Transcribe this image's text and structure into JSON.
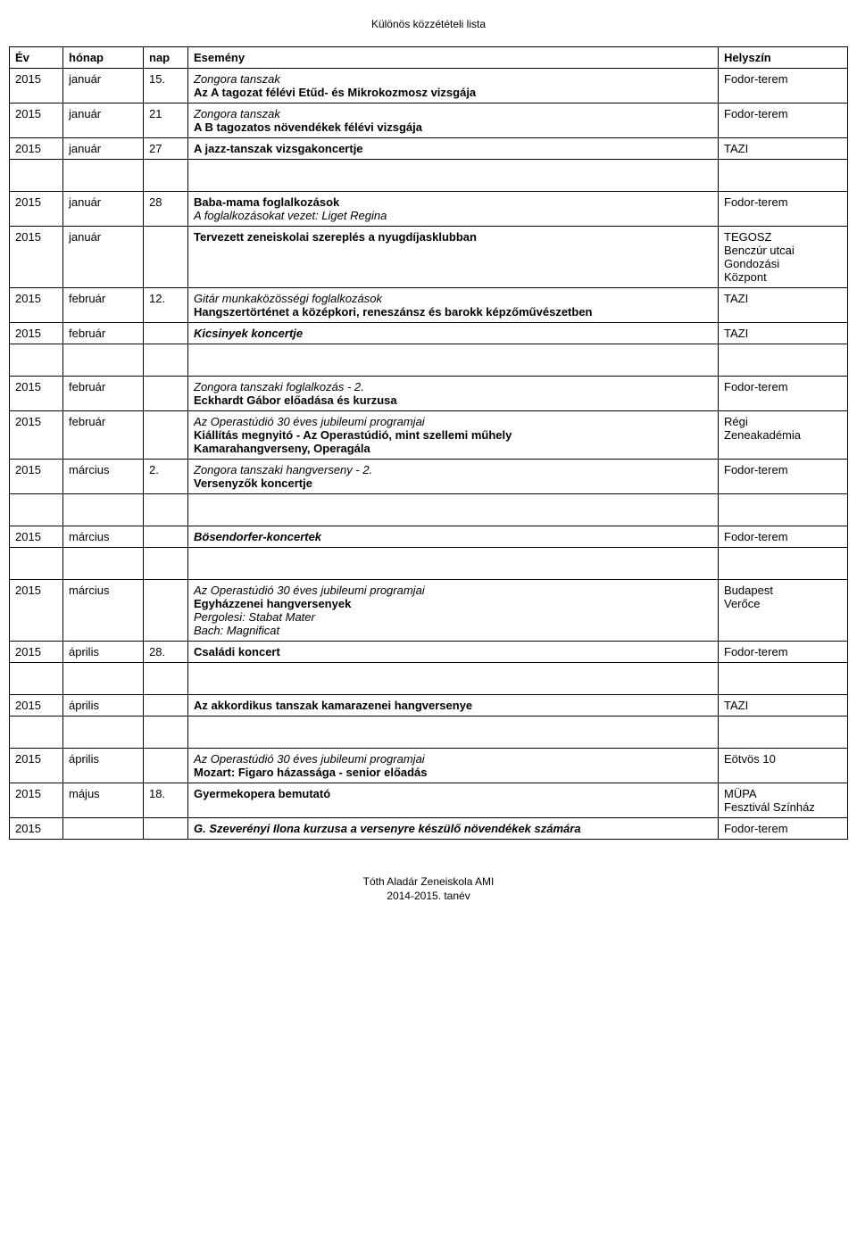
{
  "doc_header": "Különös közzétételi lista",
  "columns": {
    "year": "Év",
    "month": "hónap",
    "day": "nap",
    "event": "Esemény",
    "venue": "Helyszín"
  },
  "footer": {
    "line1": "Tóth Aladár Zeneiskola AMI",
    "line2": "2014-2015. tanév"
  },
  "rows": [
    {
      "year": "2015",
      "month": "január",
      "day": "15.",
      "event_lines": [
        {
          "text": "Zongora tanszak",
          "italic": true
        },
        {
          "text": "Az A tagozat félévi Etűd- és Mikrokozmosz vizsgája",
          "bold": true
        }
      ],
      "venue_lines": [
        "Fodor-terem"
      ]
    },
    {
      "year": "2015",
      "month": "január",
      "day": "21",
      "event_lines": [
        {
          "text": "Zongora tanszak",
          "italic": true
        },
        {
          "text": "A B tagozatos növendékek félévi vizsgája",
          "bold": true
        }
      ],
      "venue_lines": [
        "Fodor-terem"
      ]
    },
    {
      "year": "2015",
      "month": "január",
      "day": "27",
      "event_lines": [
        {
          "text": "A jazz-tanszak vizsgakoncertje",
          "bold": true
        }
      ],
      "venue_lines": [
        "TAZI"
      ]
    },
    {
      "spacer": true
    },
    {
      "year": "2015",
      "month": "január",
      "day": "28",
      "event_lines": [
        {
          "text": "Baba-mama foglalkozások",
          "bold": true
        },
        {
          "text": "A foglalkozásokat vezet: Liget Regina",
          "italic": true
        }
      ],
      "venue_lines": [
        "Fodor-terem"
      ]
    },
    {
      "year": "2015",
      "month": "január",
      "day": "",
      "event_lines": [
        {
          "text": "Tervezett zeneiskolai szereplés a nyugdíjasklubban",
          "bold": true
        }
      ],
      "venue_lines": [
        "TEGOSZ",
        "Benczúr utcai",
        "Gondozási",
        "Központ"
      ]
    },
    {
      "year": "2015",
      "month": "február",
      "day": "12.",
      "event_lines": [
        {
          "text": "Gitár munkaközösségi foglalkozások",
          "italic": true
        },
        {
          "text": "Hangszertörténet a középkori, reneszánsz és barokk képzőművészetben",
          "bold": true
        }
      ],
      "venue_lines": [
        "TAZI"
      ]
    },
    {
      "year": "2015",
      "month": "február",
      "day": "",
      "event_lines": [
        {
          "text": "Kicsinyek koncertje",
          "bolditalic": true
        }
      ],
      "venue_lines": [
        "TAZI"
      ]
    },
    {
      "spacer": true
    },
    {
      "year": "2015",
      "month": "február",
      "day": "",
      "event_lines": [
        {
          "text": "Zongora tanszaki foglalkozás - 2.",
          "italic": true
        },
        {
          "text": "Eckhardt Gábor előadása és kurzusa",
          "bold": true
        }
      ],
      "venue_lines": [
        "Fodor-terem"
      ]
    },
    {
      "year": "2015",
      "month": "február",
      "day": "",
      "event_lines": [
        {
          "text": "Az Operastúdió 30 éves jubileumi programjai",
          "italic": true
        },
        {
          "text": "Kiállítás megnyitó - Az Operastúdió, mint szellemi műhely",
          "bold": true
        },
        {
          "text": "Kamarahangverseny, Operagála",
          "bold": true
        }
      ],
      "venue_lines": [
        "Régi",
        "Zeneakadémia"
      ]
    },
    {
      "year": "2015",
      "month": "március",
      "day": "2.",
      "event_lines": [
        {
          "text": "Zongora tanszaki hangverseny - 2.",
          "italic": true
        },
        {
          "text": "Versenyzők koncertje",
          "bold": true
        }
      ],
      "venue_lines": [
        "Fodor-terem"
      ]
    },
    {
      "spacer": true
    },
    {
      "year": "2015",
      "month": "március",
      "day": "",
      "event_lines": [
        {
          "text": "Bösendorfer-koncertek",
          "bolditalic": true
        }
      ],
      "venue_lines": [
        "Fodor-terem"
      ]
    },
    {
      "spacer": true
    },
    {
      "year": "2015",
      "month": "március",
      "day": "",
      "event_lines": [
        {
          "text": "Az Operastúdió 30 éves jubileumi programjai",
          "italic": true
        },
        {
          "text": "Egyházzenei hangversenyek",
          "bold": true
        },
        {
          "text": "Pergolesi: Stabat Mater",
          "italic": true
        },
        {
          "text": "Bach: Magnificat",
          "italic": true
        }
      ],
      "venue_lines": [
        "Budapest",
        "Verőce"
      ]
    },
    {
      "year": "2015",
      "month": "április",
      "day": "28.",
      "event_lines": [
        {
          "text": "Családi koncert",
          "bold": true
        }
      ],
      "venue_lines": [
        "Fodor-terem"
      ]
    },
    {
      "spacer": true
    },
    {
      "year": "2015",
      "month": "április",
      "day": "",
      "event_lines": [
        {
          "text": "Az akkordikus tanszak kamarazenei hangversenye",
          "bold": true
        }
      ],
      "venue_lines": [
        "TAZI"
      ]
    },
    {
      "spacer": true
    },
    {
      "year": "2015",
      "month": "április",
      "day": "",
      "event_lines": [
        {
          "text": "Az Operastúdió 30 éves jubileumi programjai",
          "italic": true
        },
        {
          "text": "Mozart: Figaro házassága - senior előadás",
          "bold": true
        }
      ],
      "venue_lines": [
        "Eötvös 10"
      ]
    },
    {
      "year": "2015",
      "month": "május",
      "day": "18.",
      "event_lines": [
        {
          "text": "Gyermekopera bemutató",
          "bold": true
        }
      ],
      "venue_lines": [
        "MÜPA",
        "Fesztivál Színház"
      ]
    },
    {
      "year": "2015",
      "month": "",
      "day": "",
      "event_lines": [
        {
          "text": "G. Szeverényi Ilona kurzusa a versenyre készülő növendékek számára",
          "bolditalic": true
        }
      ],
      "venue_lines": [
        "Fodor-terem"
      ]
    }
  ]
}
